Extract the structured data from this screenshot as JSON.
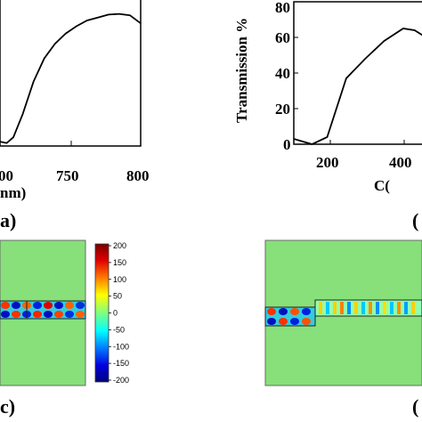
{
  "chart_data": [
    {
      "id": "a",
      "type": "line",
      "panel_label": "a)",
      "xlabel": "nm)",
      "ylabel": "",
      "x_ticks": [
        "00",
        "750",
        "800"
      ],
      "xlim": [
        695,
        800
      ],
      "ylim": [
        0,
        100
      ],
      "x": [
        695,
        700,
        705,
        712,
        720,
        728,
        736,
        744,
        752,
        760,
        768,
        776,
        784,
        792,
        800
      ],
      "y": [
        3,
        2,
        6,
        22,
        44,
        60,
        70,
        77,
        82,
        86,
        88,
        90,
        90.5,
        89.5,
        84
      ],
      "color": "#000000"
    },
    {
      "id": "b",
      "type": "line",
      "panel_label": "(",
      "xlabel": "C(",
      "ylabel": "Transmission %",
      "x_ticks": [
        "200",
        "400"
      ],
      "y_ticks": [
        "0",
        "20",
        "40",
        "60",
        "80"
      ],
      "xlim": [
        112,
        487
      ],
      "ylim": [
        0,
        80
      ],
      "x": [
        112,
        160,
        200,
        250,
        300,
        350,
        400,
        430,
        460
      ],
      "y": [
        3,
        0,
        4,
        37,
        48,
        58,
        65,
        64,
        60
      ],
      "color": "#000000"
    },
    {
      "id": "c",
      "type": "heatmap",
      "panel_label": "c)",
      "colorbar_ticks": [
        "200",
        "150",
        "100",
        "50",
        "0",
        "-50",
        "-100",
        "-150",
        "-200"
      ],
      "clim": [
        -200,
        200
      ],
      "background_color": "#87e07a",
      "colormap": [
        "#7a0000",
        "#e00000",
        "#ff8000",
        "#ffff00",
        "#80ff80",
        "#00ffff",
        "#0080ff",
        "#0000e0",
        "#00007a"
      ]
    },
    {
      "id": "d",
      "type": "heatmap",
      "panel_label": "(",
      "background_color": "#87e07a"
    }
  ]
}
